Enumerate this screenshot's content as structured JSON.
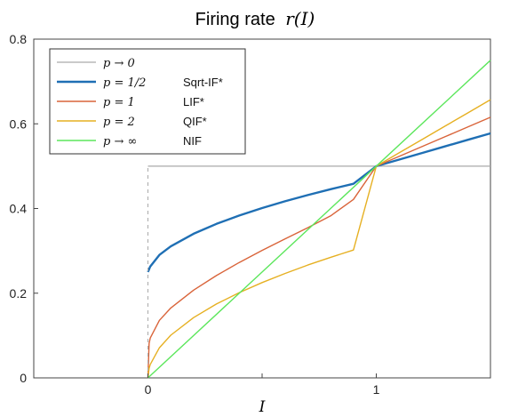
{
  "chart_data": {
    "type": "line",
    "title_prefix": "Firing rate",
    "title_math": "r(I)",
    "xlabel": "I",
    "xlim": [
      -0.5,
      1.5
    ],
    "ylim": [
      0,
      0.8
    ],
    "xticks": [
      {
        "value": 0,
        "label": "0"
      },
      {
        "value": 1,
        "label": "1"
      }
    ],
    "yticks": [
      {
        "value": 0,
        "label": "0"
      },
      {
        "value": 0.2,
        "label": "0.2"
      },
      {
        "value": 0.4,
        "label": "0.4"
      },
      {
        "value": 0.6,
        "label": "0.6"
      },
      {
        "value": 0.8,
        "label": "0.8"
      }
    ],
    "grid": false,
    "legend_position": "top-left",
    "series": [
      {
        "name": "p → 0",
        "model": "",
        "color": "#aaaaaa",
        "x": [
          0,
          1.5
        ],
        "y": [
          0.5,
          0.5
        ]
      },
      {
        "name": "p = 1/2",
        "model": "Sqrt-IF*",
        "color": "#1f6fb4",
        "x": [
          0,
          0.01,
          0.05,
          0.1,
          0.2,
          0.3,
          0.4,
          0.5,
          0.6,
          0.7,
          0.8,
          0.9,
          1.0,
          1.1,
          1.2,
          1.3,
          1.4,
          1.5
        ],
        "y": [
          0.25,
          0.2631,
          0.2903,
          0.3105,
          0.3404,
          0.3637,
          0.3835,
          0.4011,
          0.417,
          0.4318,
          0.4455,
          0.4584,
          0.5,
          0.5155,
          0.531,
          0.5465,
          0.562,
          0.5774
        ]
      },
      {
        "name": "p = 1",
        "model": "LIF*",
        "color": "#d9643a",
        "x": [
          0,
          0.005,
          0.01,
          0.05,
          0.1,
          0.2,
          0.3,
          0.4,
          0.5,
          0.6,
          0.7,
          0.8,
          0.9,
          1.0,
          1.1,
          1.2,
          1.3,
          1.4,
          1.5
        ],
        "y": [
          0,
          0.0811,
          0.0941,
          0.1359,
          0.1651,
          0.2073,
          0.2417,
          0.2725,
          0.301,
          0.3282,
          0.3547,
          0.3825,
          0.4214,
          0.5,
          0.5231,
          0.5462,
          0.5693,
          0.5924,
          0.6155
        ]
      },
      {
        "name": "p = 2",
        "model": "QIF*",
        "color": "#e6b022",
        "x": [
          0,
          0.005,
          0.01,
          0.05,
          0.1,
          0.2,
          0.3,
          0.4,
          0.5,
          0.6,
          0.7,
          0.8,
          0.9,
          1.0,
          1.1,
          1.2,
          1.3,
          1.4,
          1.5
        ],
        "y": [
          0,
          0.0225,
          0.0318,
          0.0712,
          0.1007,
          0.1424,
          0.1744,
          0.2013,
          0.2251,
          0.2466,
          0.2664,
          0.2848,
          0.302,
          0.5,
          0.5314,
          0.5628,
          0.5942,
          0.6256,
          0.657
        ]
      },
      {
        "name": "p → ∞",
        "model": "NIF",
        "color": "#5ce65c",
        "x": [
          0,
          1.5
        ],
        "y": [
          0,
          0.75
        ]
      }
    ]
  }
}
